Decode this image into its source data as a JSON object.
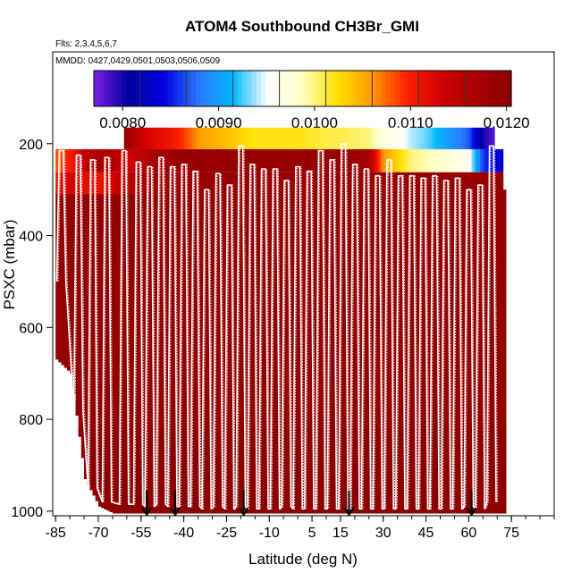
{
  "chart_data": {
    "type": "heatmap",
    "title": "ATOM4 Southbound CH3Br_GMI",
    "notes": {
      "flights": "Flts: 2,3,4,5,6,7",
      "dates": "MMDD: 0427,0429,0501,0503,0506,0509"
    },
    "xlabel": "Latitude (deg N)",
    "ylabel": "PSXC (mbar)",
    "x_ticks": [
      -85,
      -70,
      -55,
      -40,
      -25,
      -10,
      5,
      15,
      30,
      45,
      60,
      75
    ],
    "x_tick_labels": [
      "-85",
      "-70",
      "-55",
      "-40",
      "-25",
      "-10",
      "5",
      "15",
      "30",
      "45",
      "60",
      "75"
    ],
    "xlim": [
      -86,
      90
    ],
    "y_ticks": [
      200,
      400,
      600,
      800,
      1000
    ],
    "y_tick_labels": [
      "200",
      "400",
      "600",
      "800",
      "1000"
    ],
    "ylim": [
      1010,
      0
    ],
    "y_reversed": true,
    "colorbar": {
      "ticks": [
        0.008,
        0.009,
        0.01,
        0.011,
        0.012
      ],
      "tick_labels": [
        "0.0080",
        "0.0090",
        "0.0100",
        "0.0110",
        "0.0120"
      ],
      "range": [
        0.0077,
        0.01205
      ],
      "palette": [
        "#7b1ee6",
        "#0000a0",
        "#0000e0",
        "#2a78ff",
        "#00b8ff",
        "#ffffff",
        "#ffffc0",
        "#ffe000",
        "#ff9a00",
        "#ff2000",
        "#d00000",
        "#a80000",
        "#8b0000"
      ]
    },
    "field": {
      "mean_value": 0.01195,
      "lower_value": 0.01202,
      "coverage_latitudes": [
        -85,
        -80,
        -75,
        -70,
        -65,
        -60,
        -55,
        -50,
        -45,
        -40,
        -35,
        -30,
        -25,
        -20,
        -15,
        -10,
        -5,
        0,
        5,
        10,
        15,
        20,
        25,
        30,
        35,
        40,
        45,
        50,
        55,
        60,
        65,
        70,
        72
      ],
      "coverage_bottom_pressure": [
        670,
        700,
        930,
        990,
        1005,
        1005,
        1005,
        1005,
        1005,
        1005,
        1005,
        1005,
        1005,
        1005,
        1005,
        1005,
        1005,
        1005,
        1005,
        1005,
        1005,
        1005,
        1005,
        1005,
        1005,
        1005,
        1005,
        1005,
        1005,
        1005,
        1005,
        1005,
        1005
      ],
      "top_band": {
        "pressure_range": [
          165,
          212
        ],
        "lat_range": [
          -61,
          69
        ],
        "latitudes": [
          -61,
          -55,
          -50,
          -45,
          -40,
          -35,
          -30,
          -25,
          -20,
          -15,
          -10,
          -5,
          0,
          5,
          10,
          15,
          20,
          25,
          30,
          35,
          40,
          45,
          50,
          55,
          60,
          65,
          69
        ],
        "values": [
          0.0119,
          0.0114,
          0.0112,
          0.0111,
          0.0109,
          0.0106,
          0.0105,
          0.0104,
          0.0103,
          0.0102,
          0.0102,
          0.0102,
          0.0102,
          0.01015,
          0.0101,
          0.0101,
          0.01005,
          0.01,
          0.0097,
          0.0096,
          0.0094,
          0.0093,
          0.0091,
          0.0089,
          0.0087,
          0.008,
          0.0078
        ]
      },
      "second_band": {
        "pressure_range": [
          212,
          262
        ],
        "lat_range": [
          -85,
          72
        ],
        "latitudes": [
          -85,
          -80,
          -75,
          -70,
          -65,
          -60,
          -55,
          -50,
          -45,
          -40,
          -35,
          -30,
          -25,
          -20,
          -15,
          -10,
          -5,
          0,
          5,
          10,
          15,
          20,
          25,
          30,
          35,
          40,
          45,
          50,
          55,
          60,
          65,
          70
        ],
        "values": [
          0.0108,
          0.011,
          0.0114,
          0.0117,
          0.0116,
          0.0113,
          0.0115,
          0.0117,
          0.0118,
          0.0119,
          0.0119,
          0.0119,
          0.0119,
          0.0119,
          0.0119,
          0.0119,
          0.0119,
          0.0119,
          0.0119,
          0.0119,
          0.0119,
          0.0119,
          0.0117,
          0.0106,
          0.0103,
          0.01,
          0.0099,
          0.0098,
          0.0097,
          0.0096,
          0.0086,
          0.0083
        ]
      },
      "third_band": {
        "pressure_range": [
          262,
          310
        ],
        "lat_range": [
          -85,
          72
        ],
        "latitudes": [
          -85,
          -80,
          -75,
          -70,
          -65,
          -60,
          -55,
          -50,
          -45,
          -40,
          -35,
          -30,
          -25,
          -20,
          -15,
          -10,
          -5,
          0,
          5,
          10,
          15,
          20,
          25,
          30,
          35,
          40,
          45,
          50,
          55,
          60,
          65,
          70
        ],
        "values": [
          0.0111,
          0.0113,
          0.0112,
          0.0111,
          0.0113,
          0.0115,
          0.0117,
          0.0118,
          0.0118,
          0.0119,
          0.0119,
          0.0119,
          0.0119,
          0.0119,
          0.0119,
          0.0119,
          0.0119,
          0.0119,
          0.0119,
          0.0119,
          0.0119,
          0.0119,
          0.0119,
          0.0119,
          0.0119,
          0.0119,
          0.0119,
          0.0119,
          0.0119,
          0.0119,
          0.0119,
          0.0119
        ]
      }
    },
    "flight_track": {
      "color": "#ffffff",
      "profile_latitudes": [
        -83,
        -77,
        -72,
        -67,
        -61,
        -56,
        -52,
        -48,
        -44,
        -40,
        -36,
        -32,
        -28,
        -24,
        -20,
        -16,
        -12,
        -8,
        -4,
        0,
        4,
        8,
        12,
        16,
        20,
        24,
        28,
        32,
        36,
        40,
        44,
        48,
        52,
        56,
        60,
        64,
        68
      ],
      "profile_top_pressure": [
        215,
        225,
        235,
        230,
        215,
        240,
        250,
        230,
        250,
        245,
        260,
        300,
        265,
        290,
        205,
        245,
        255,
        255,
        280,
        250,
        260,
        215,
        235,
        200,
        245,
        255,
        270,
        235,
        270,
        270,
        275,
        270,
        280,
        275,
        300,
        290,
        205
      ],
      "profile_bottom_pressure": [
        500,
        780,
        950,
        980,
        985,
        985,
        990,
        985,
        990,
        990,
        990,
        995,
        990,
        995,
        990,
        995,
        995,
        995,
        990,
        995,
        995,
        995,
        995,
        995,
        995,
        995,
        995,
        995,
        995,
        995,
        995,
        995,
        995,
        995,
        990,
        995,
        980
      ]
    },
    "markers": {
      "type": "downward arrows",
      "color": "#000000",
      "latitudes": [
        -53,
        -43,
        -19,
        18,
        61
      ],
      "pressure_range": [
        955,
        1010
      ]
    }
  }
}
